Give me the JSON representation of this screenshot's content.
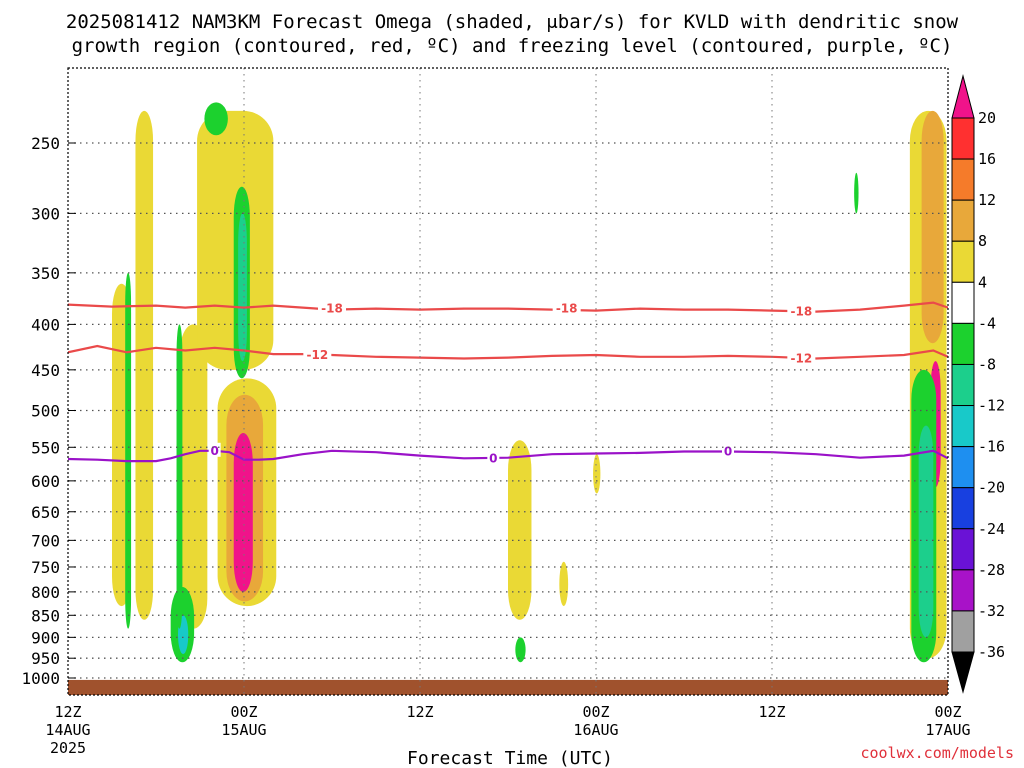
{
  "title_line1": "2025081412 NAM3KM Forecast Omega (shaded, μbar/s) for KVLD with dendritic snow",
  "title_line2": "growth region (contoured, red, ºC) and freezing level (contoured, purple, ºC)",
  "xlabel": "Forecast Time (UTC)",
  "credit": "coolwx.com/models",
  "chart_data": {
    "type": "heatmap",
    "title": "2025081412 NAM3KM Forecast Omega (shaded, μbar/s) for KVLD with dendritic snow growth region (contoured, red, ºC) and freezing level (contoured, purple, ºC)",
    "xlabel": "Forecast Time (UTC)",
    "ylabel": "",
    "x_range_hours": [
      0,
      60
    ],
    "x_ticks": [
      {
        "hour": 0,
        "label": "12Z",
        "label2": "14AUG",
        "label3": "2025"
      },
      {
        "hour": 12,
        "label": "00Z",
        "label2": "15AUG",
        "label3": ""
      },
      {
        "hour": 24,
        "label": "12Z",
        "label2": "",
        "label3": ""
      },
      {
        "hour": 36,
        "label": "00Z",
        "label2": "16AUG",
        "label3": ""
      },
      {
        "hour": 48,
        "label": "12Z",
        "label2": "",
        "label3": ""
      },
      {
        "hour": 60,
        "label": "00Z",
        "label2": "17AUG",
        "label3": ""
      }
    ],
    "y_ticks": [
      250,
      300,
      350,
      400,
      450,
      500,
      550,
      600,
      650,
      700,
      750,
      800,
      850,
      900,
      950,
      1000
    ],
    "y_scale": "log-pressure (inverted)",
    "grid": true,
    "colorbar": {
      "levels": [
        20,
        16,
        12,
        8,
        4,
        -4,
        -8,
        -12,
        -16,
        -20,
        -24,
        -28,
        -32,
        -36
      ],
      "bands": [
        {
          "range": [
            16,
            20
          ],
          "color": "#ff3030"
        },
        {
          "range": [
            12,
            16
          ],
          "color": "#f57b2a"
        },
        {
          "range": [
            8,
            12
          ],
          "color": "#e8a83a"
        },
        {
          "range": [
            4,
            8
          ],
          "color": "#ead935"
        },
        {
          "range": [
            -4,
            4
          ],
          "color": "#ffffff"
        },
        {
          "range": [
            -8,
            -4
          ],
          "color": "#1cd12e"
        },
        {
          "range": [
            -12,
            -8
          ],
          "color": "#1ccf8c"
        },
        {
          "range": [
            -16,
            -12
          ],
          "color": "#18c9c9"
        },
        {
          "range": [
            -20,
            -16
          ],
          "color": "#1e8ff0"
        },
        {
          "range": [
            -24,
            -20
          ],
          "color": "#1840e0"
        },
        {
          "range": [
            -28,
            -24
          ],
          "color": "#6a12d6"
        },
        {
          "range": [
            -32,
            -28
          ],
          "color": "#a812c8"
        },
        {
          "range": [
            -36,
            -32
          ],
          "color": "#a0a0a0"
        }
      ],
      "top_arrow_color": "#f0138a",
      "bottom_arrow_color": "#000000"
    },
    "series": [
      {
        "name": "-18",
        "color": "#ea4a4a",
        "x": [
          0,
          3,
          6,
          8,
          10,
          12,
          14,
          16,
          18,
          21,
          24,
          27,
          30,
          33,
          36,
          39,
          42,
          45,
          48,
          51,
          54,
          57,
          59,
          60
        ],
        "y": [
          380,
          382,
          381,
          383,
          381,
          383,
          381,
          383,
          385,
          384,
          385,
          384,
          384,
          385,
          386,
          384,
          385,
          385,
          386,
          387,
          385,
          381,
          378,
          383
        ]
      },
      {
        "name": "-12",
        "color": "#ea4a4a",
        "x": [
          0,
          2,
          4,
          6,
          8,
          10,
          12,
          14,
          16,
          18,
          21,
          24,
          27,
          30,
          33,
          36,
          39,
          42,
          45,
          48,
          51,
          54,
          57,
          59,
          60
        ],
        "y": [
          430,
          423,
          430,
          425,
          428,
          425,
          428,
          432,
          432,
          433,
          435,
          436,
          437,
          436,
          434,
          433,
          435,
          435,
          434,
          435,
          437,
          435,
          433,
          428,
          435
        ]
      },
      {
        "name": "0",
        "color": "#9a12c8",
        "x": [
          0,
          2,
          4,
          6,
          7,
          8,
          9,
          10,
          11,
          12,
          13,
          14,
          16,
          18,
          21,
          24,
          27,
          30,
          33,
          36,
          39,
          42,
          45,
          48,
          51,
          54,
          57,
          59,
          60
        ],
        "y": [
          567,
          568,
          570,
          570,
          566,
          560,
          555,
          555,
          557,
          568,
          568,
          567,
          560,
          555,
          557,
          562,
          566,
          565,
          560,
          559,
          558,
          556,
          556,
          557,
          560,
          565,
          562,
          555,
          566
        ]
      }
    ],
    "contour_labels": [
      {
        "text": "-18",
        "hour": 18,
        "p": 384,
        "series": "-18"
      },
      {
        "text": "-18",
        "hour": 34,
        "p": 384,
        "series": "-18"
      },
      {
        "text": "-18",
        "hour": 50,
        "p": 387,
        "series": "-18"
      },
      {
        "text": "-12",
        "hour": 17,
        "p": 433,
        "series": "-12"
      },
      {
        "text": "-12",
        "hour": 50,
        "p": 437,
        "series": "-12"
      },
      {
        "text": "0",
        "hour": 10,
        "p": 555,
        "series": "0"
      },
      {
        "text": "0",
        "hour": 29,
        "p": 566,
        "series": "0"
      },
      {
        "text": "0",
        "hour": 45,
        "p": 556,
        "series": "0"
      }
    ],
    "shaded_regions": [
      {
        "level": "4-8",
        "hour_range": [
          4.6,
          5.8
        ],
        "p_range": [
          230,
          860
        ]
      },
      {
        "level": "4-8",
        "hour_range": [
          3.0,
          4.3
        ],
        "p_range": [
          360,
          830
        ]
      },
      {
        "level": "4-8",
        "hour_range": [
          7.6,
          9.5
        ],
        "p_range": [
          400,
          880
        ]
      },
      {
        "level": "4-8",
        "hour_range": [
          8.8,
          14.0
        ],
        "p_range": [
          230,
          450
        ]
      },
      {
        "level": "4-8",
        "hour_range": [
          10.2,
          14.2
        ],
        "p_range": [
          460,
          830
        ]
      },
      {
        "level": "8-12",
        "hour_range": [
          10.8,
          13.3
        ],
        "p_range": [
          480,
          820
        ]
      },
      {
        "level": "16-20",
        "hour_range": [
          11.3,
          12.6
        ],
        "p_range": [
          530,
          800
        ]
      },
      {
        "level": "-8--4",
        "hour_range": [
          11.3,
          12.4
        ],
        "p_range": [
          280,
          460
        ]
      },
      {
        "level": "-12--8",
        "hour_range": [
          11.6,
          12.2
        ],
        "p_range": [
          300,
          440
        ]
      },
      {
        "level": "-8--4",
        "hour_range": [
          9.3,
          10.9
        ],
        "p_range": [
          225,
          245
        ]
      },
      {
        "level": "-8--4",
        "hour_range": [
          7.0,
          8.6
        ],
        "p_range": [
          790,
          960
        ]
      },
      {
        "level": "-16--12",
        "hour_range": [
          7.5,
          8.2
        ],
        "p_range": [
          850,
          940
        ]
      },
      {
        "level": "-8--4",
        "hour_range": [
          7.4,
          7.8
        ],
        "p_range": [
          400,
          880
        ]
      },
      {
        "level": "-8--4",
        "hour_range": [
          3.9,
          4.3
        ],
        "p_range": [
          350,
          880
        ]
      },
      {
        "level": "4-8",
        "hour_range": [
          30.0,
          31.6
        ],
        "p_range": [
          540,
          860
        ]
      },
      {
        "level": "4-8",
        "hour_range": [
          33.5,
          34.1
        ],
        "p_range": [
          740,
          830
        ]
      },
      {
        "level": "4-8",
        "hour_range": [
          35.8,
          36.3
        ],
        "p_range": [
          560,
          620
        ]
      },
      {
        "level": "-8--4",
        "hour_range": [
          30.5,
          31.2
        ],
        "p_range": [
          900,
          960
        ]
      },
      {
        "level": "-8--4",
        "hour_range": [
          53.6,
          53.9
        ],
        "p_range": [
          270,
          300
        ]
      },
      {
        "level": "4-8",
        "hour_range": [
          57.4,
          59.9
        ],
        "p_range": [
          230,
          950
        ]
      },
      {
        "level": "8-12",
        "hour_range": [
          58.2,
          59.7
        ],
        "p_range": [
          230,
          420
        ]
      },
      {
        "level": "16-20",
        "hour_range": [
          58.8,
          59.5
        ],
        "p_range": [
          440,
          610
        ]
      },
      {
        "level": "-8--4",
        "hour_range": [
          57.5,
          59.2
        ],
        "p_range": [
          450,
          960
        ]
      },
      {
        "level": "-12--8",
        "hour_range": [
          58.0,
          59.0
        ],
        "p_range": [
          520,
          900
        ]
      }
    ],
    "ground_band": {
      "color": "#a0522d",
      "p_from": 1005
    }
  }
}
